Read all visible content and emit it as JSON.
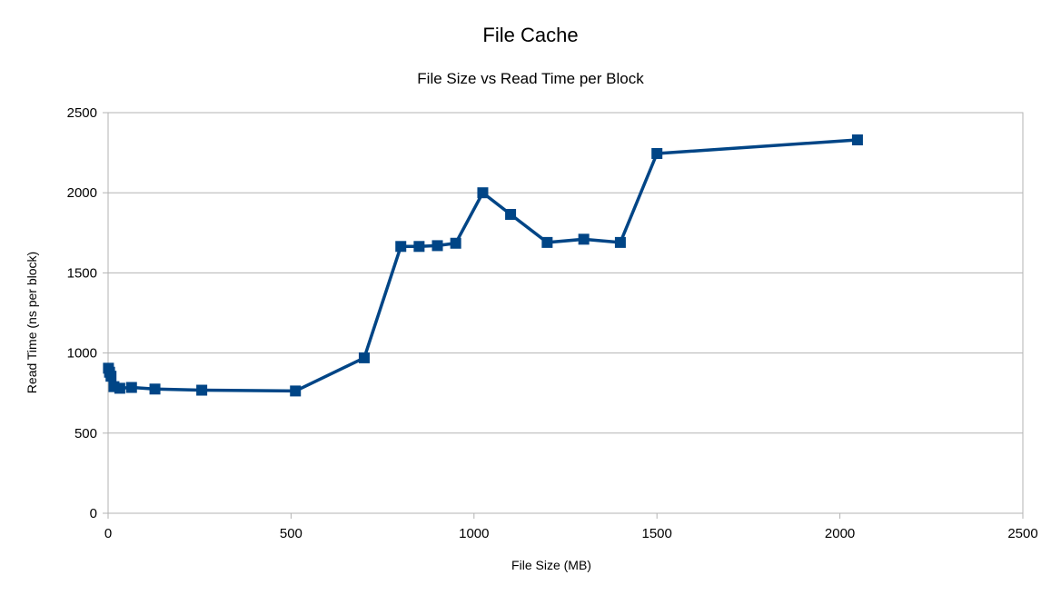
{
  "chart_data": {
    "type": "scatter",
    "title": "File Cache",
    "subtitle": "File Size vs Read Time per Block",
    "xlabel": "File Size (MB)",
    "ylabel": "Read Time (ns per block)",
    "xlim": [
      0,
      2500
    ],
    "ylim": [
      0,
      2500
    ],
    "xticks": [
      0,
      500,
      1000,
      1500,
      2000,
      2500
    ],
    "yticks": [
      0,
      500,
      1000,
      1500,
      2000,
      2500
    ],
    "grid": "horizontal",
    "legend": "none",
    "series": [
      {
        "color": "#004586",
        "marker": "square",
        "line": true,
        "points": [
          {
            "x": 1,
            "y": 905
          },
          {
            "x": 4,
            "y": 880
          },
          {
            "x": 8,
            "y": 855
          },
          {
            "x": 16,
            "y": 790
          },
          {
            "x": 32,
            "y": 780
          },
          {
            "x": 64,
            "y": 785
          },
          {
            "x": 128,
            "y": 775
          },
          {
            "x": 256,
            "y": 768
          },
          {
            "x": 512,
            "y": 763
          },
          {
            "x": 700,
            "y": 970
          },
          {
            "x": 800,
            "y": 1665
          },
          {
            "x": 850,
            "y": 1665
          },
          {
            "x": 900,
            "y": 1670
          },
          {
            "x": 950,
            "y": 1685
          },
          {
            "x": 1024,
            "y": 2000
          },
          {
            "x": 1100,
            "y": 1865
          },
          {
            "x": 1200,
            "y": 1690
          },
          {
            "x": 1300,
            "y": 1710
          },
          {
            "x": 1400,
            "y": 1690
          },
          {
            "x": 1500,
            "y": 2245
          },
          {
            "x": 2048,
            "y": 2330
          }
        ]
      }
    ]
  }
}
